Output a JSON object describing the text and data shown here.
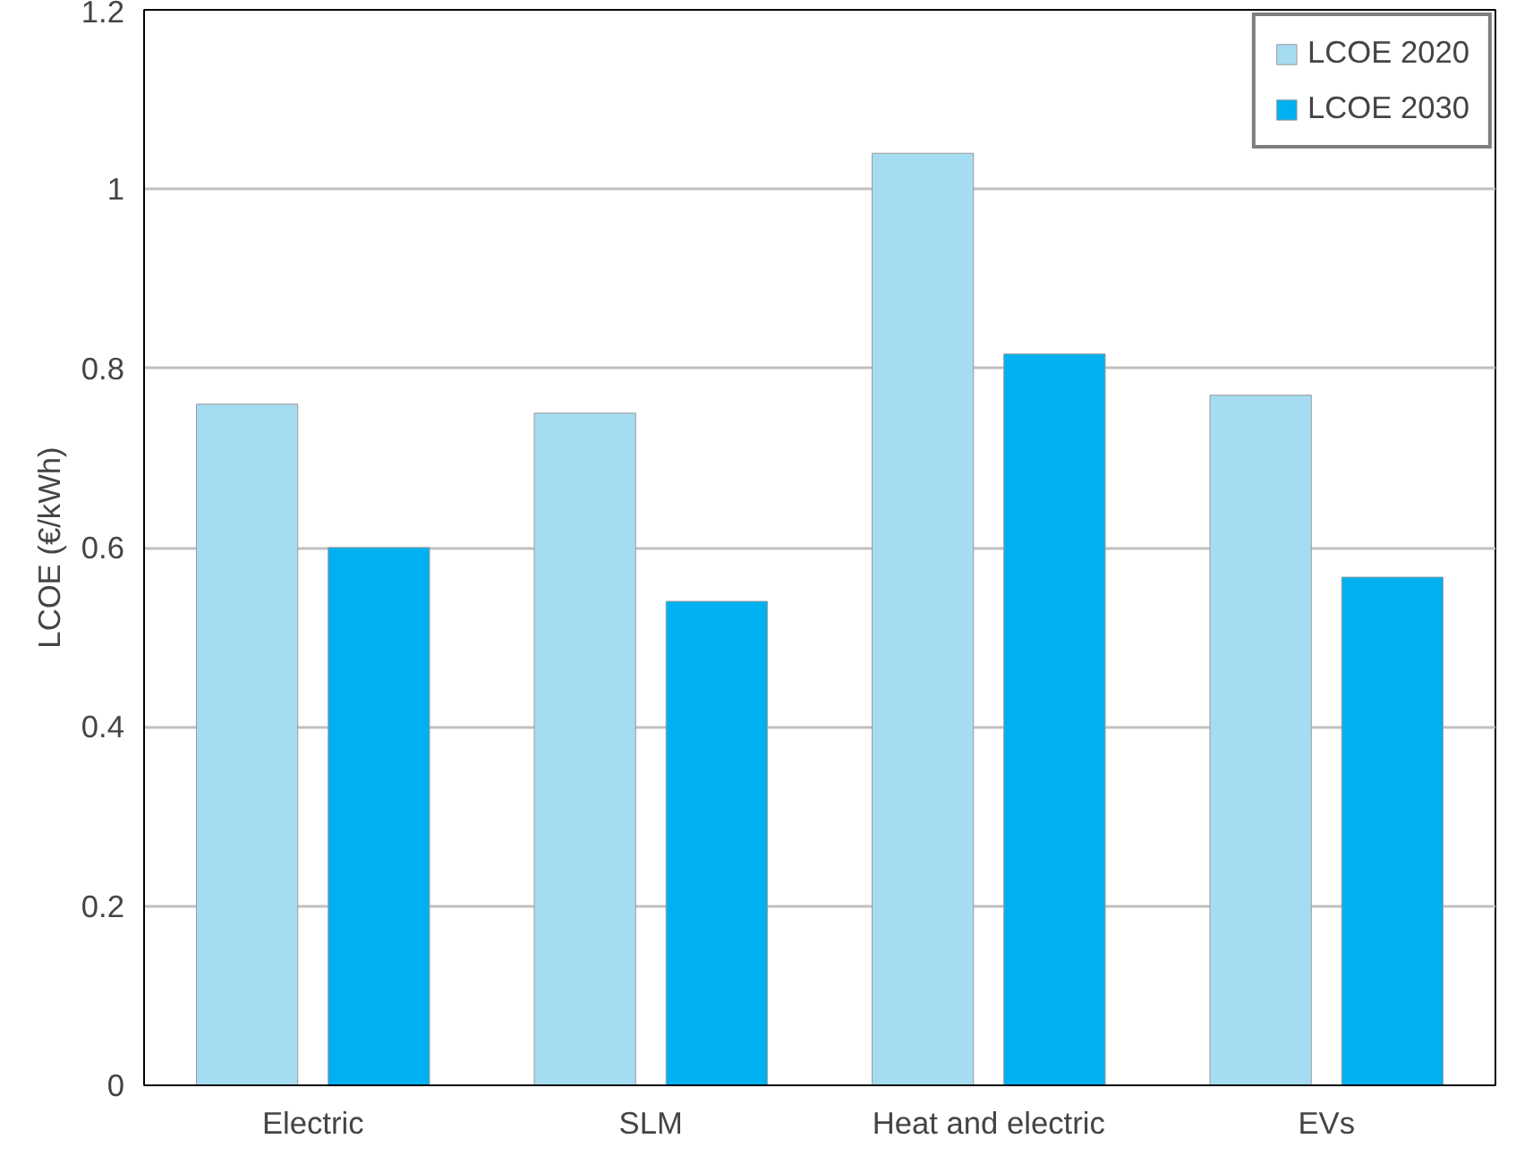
{
  "chart_data": {
    "type": "bar",
    "ylabel": "LCOE (€/kWh)",
    "categories": [
      "Electric",
      "SLM",
      "Heat and electric",
      "EVs"
    ],
    "series": [
      {
        "name": "LCOE 2020",
        "color": "#a6dcf2",
        "values": [
          0.76,
          0.75,
          1.04,
          0.77
        ]
      },
      {
        "name": "LCOE 2030",
        "color": "#00b0f0",
        "values": [
          0.6,
          0.54,
          0.816,
          0.567
        ]
      }
    ],
    "ylim": [
      0,
      1.2
    ],
    "yticks": [
      0,
      0.2,
      0.4,
      0.6,
      0.8,
      1,
      1.2
    ],
    "grid": "y",
    "legend": "top right"
  }
}
